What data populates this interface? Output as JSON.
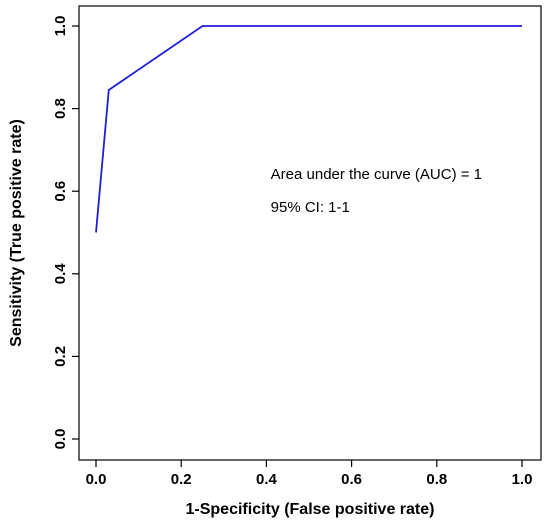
{
  "chart_data": {
    "type": "line",
    "title": "",
    "xlabel": "1-Specificity (False positive rate)",
    "ylabel": "Sensitivity (True positive rate)",
    "xlim": [
      0,
      1
    ],
    "ylim": [
      0,
      1
    ],
    "x_ticks": [
      "0.0",
      "0.2",
      "0.4",
      "0.6",
      "0.8",
      "1.0"
    ],
    "y_ticks": [
      "0.0",
      "0.2",
      "0.4",
      "0.6",
      "0.8",
      "1.0"
    ],
    "grid": false,
    "series": [
      {
        "color": "#1f1fd6",
        "points": [
          {
            "x": 0.0,
            "y": 0.5
          },
          {
            "x": 0.03,
            "y": 0.845
          },
          {
            "x": 0.25,
            "y": 1.0
          },
          {
            "x": 1.0,
            "y": 1.0
          }
        ]
      }
    ],
    "annotations": [
      {
        "text": "Area under the curve (AUC) = 1",
        "x": 0.41,
        "y": 0.63
      },
      {
        "text": "95% CI: 1-1",
        "x": 0.41,
        "y": 0.55
      }
    ]
  }
}
